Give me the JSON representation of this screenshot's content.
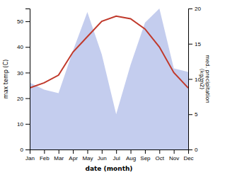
{
  "chart_data": {
    "type": "line",
    "categories": [
      "Jan",
      "Feb",
      "Mar",
      "Apr",
      "May",
      "Jun",
      "Jul",
      "Aug",
      "Sep",
      "Oct",
      "Nov",
      "Dec"
    ],
    "xlabel": "date (month)",
    "ylabel": "max temp (C)",
    "y2label": "med. precipitation\n(kg/m2)",
    "ylim": [
      0,
      55
    ],
    "yticks": [
      0,
      10,
      20,
      30,
      40,
      50
    ],
    "y2lim": [
      0,
      20
    ],
    "y2ticks": [
      0,
      5,
      10,
      15,
      20
    ],
    "series": [
      {
        "type": "area",
        "axis": "y2",
        "color": "#b0bce8",
        "values": [
          9.5,
          8.5,
          8.0,
          14.0,
          19.5,
          13.5,
          5.0,
          12.0,
          18.0,
          20.0,
          11.5,
          11.0
        ]
      },
      {
        "type": "line",
        "color": "#c0392b",
        "values": [
          24,
          26,
          29,
          38,
          44,
          50,
          52,
          51,
          47,
          40,
          30,
          24
        ]
      }
    ]
  }
}
